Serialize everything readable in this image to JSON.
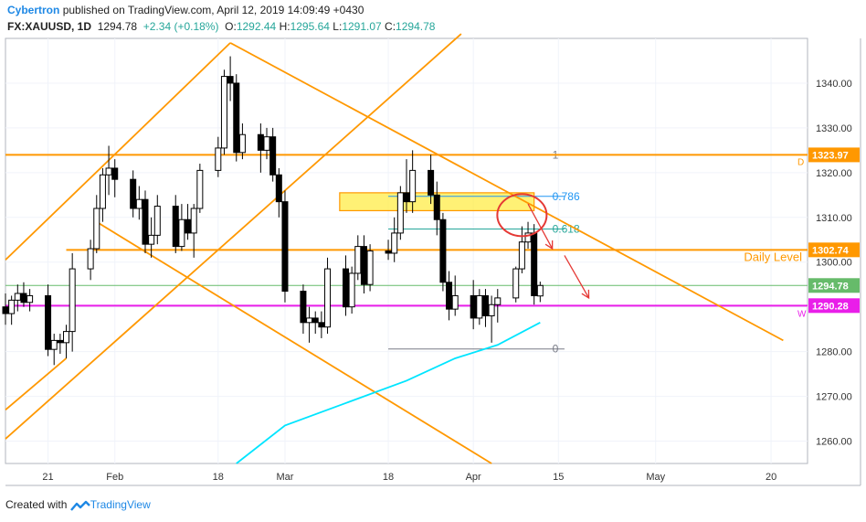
{
  "header": {
    "author": "Cybertron",
    "published_text": "published on TradingView.com, April 12, 2019 14:09:49 +0430",
    "symbol": "FX:XAUUSD, 1D",
    "last": "1294.78",
    "change": "+2.34 (+0.18%)",
    "o_label": "O:",
    "o_value": "1292.44",
    "h_label": "H:",
    "h_value": "1295.64",
    "l_label": "L:",
    "l_value": "1291.07",
    "c_label": "C:",
    "c_value": "1294.78"
  },
  "footer": {
    "created_with": "Created with",
    "brand": "TradingView"
  },
  "colors": {
    "bull": "#ffffff",
    "bear": "#000000",
    "orange": "#ff9800",
    "magenta": "#e91ee9",
    "ma": "#00e5ff",
    "fib_blue": "#2196f3",
    "fib_green": "#26a69a",
    "red": "#e53935",
    "zone": "#ffeb3b",
    "green_line": "#66bb6a",
    "gray": "#787b86"
  },
  "chart_data": {
    "type": "candlestick",
    "x_labels": [
      {
        "label": "21",
        "date": "2019-01-21"
      },
      {
        "label": "Feb",
        "date": "2019-02-01"
      },
      {
        "label": "18",
        "date": "2019-02-18"
      },
      {
        "label": "Mar",
        "date": "2019-03-01"
      },
      {
        "label": "18",
        "date": "2019-03-18"
      },
      {
        "label": "Apr",
        "date": "2019-04-01"
      },
      {
        "label": "15",
        "date": "2019-04-15"
      },
      {
        "label": "May",
        "date": "2019-05-01"
      },
      {
        "label": "20",
        "date": "2019-05-20"
      }
    ],
    "y_ticks": [
      1260,
      1270,
      1280,
      1290,
      1300,
      1310,
      1320,
      1330,
      1340
    ],
    "ylim": [
      1255,
      1350
    ],
    "xlim": [
      "2019-01-14",
      "2019-05-26"
    ],
    "candles": [
      {
        "date": "2019-01-14",
        "o": 1290.0,
        "h": 1293.0,
        "l": 1286.0,
        "c": 1288.5
      },
      {
        "date": "2019-01-15",
        "o": 1288.5,
        "h": 1292.5,
        "l": 1286.0,
        "c": 1291.5
      },
      {
        "date": "2019-01-16",
        "o": 1291.5,
        "h": 1295.0,
        "l": 1289.0,
        "c": 1293.0
      },
      {
        "date": "2019-01-17",
        "o": 1293.0,
        "h": 1295.5,
        "l": 1290.0,
        "c": 1291.0
      },
      {
        "date": "2019-01-18",
        "o": 1291.0,
        "h": 1294.0,
        "l": 1289.0,
        "c": 1292.5
      },
      {
        "date": "2019-01-21",
        "o": 1292.5,
        "h": 1295.0,
        "l": 1279.0,
        "c": 1280.5
      },
      {
        "date": "2019-01-22",
        "o": 1280.5,
        "h": 1284.0,
        "l": 1277.0,
        "c": 1282.5
      },
      {
        "date": "2019-01-23",
        "o": 1282.5,
        "h": 1284.0,
        "l": 1279.5,
        "c": 1282.0
      },
      {
        "date": "2019-01-24",
        "o": 1282.0,
        "h": 1286.0,
        "l": 1278.5,
        "c": 1284.5
      },
      {
        "date": "2019-01-25",
        "o": 1284.5,
        "h": 1302.0,
        "l": 1280.0,
        "c": 1298.5
      },
      {
        "date": "2019-01-28",
        "o": 1298.5,
        "h": 1305.0,
        "l": 1296.0,
        "c": 1303.0
      },
      {
        "date": "2019-01-29",
        "o": 1303.0,
        "h": 1315.0,
        "l": 1302.0,
        "c": 1312.0
      },
      {
        "date": "2019-01-30",
        "o": 1312.0,
        "h": 1321.0,
        "l": 1309.0,
        "c": 1319.5
      },
      {
        "date": "2019-01-31",
        "o": 1319.5,
        "h": 1326.0,
        "l": 1315.0,
        "c": 1321.0
      },
      {
        "date": "2019-02-01",
        "o": 1321.0,
        "h": 1323.0,
        "l": 1314.5,
        "c": 1318.5
      },
      {
        "date": "2019-02-04",
        "o": 1318.5,
        "h": 1320.5,
        "l": 1310.0,
        "c": 1312.0
      },
      {
        "date": "2019-02-05",
        "o": 1312.0,
        "h": 1317.0,
        "l": 1309.5,
        "c": 1314.0
      },
      {
        "date": "2019-02-06",
        "o": 1314.0,
        "h": 1316.0,
        "l": 1302.0,
        "c": 1304.0
      },
      {
        "date": "2019-02-07",
        "o": 1304.0,
        "h": 1310.0,
        "l": 1301.0,
        "c": 1306.0
      },
      {
        "date": "2019-02-08",
        "o": 1306.0,
        "h": 1315.0,
        "l": 1304.0,
        "c": 1312.5
      },
      {
        "date": "2019-02-11",
        "o": 1312.5,
        "h": 1315.0,
        "l": 1302.0,
        "c": 1303.5
      },
      {
        "date": "2019-02-12",
        "o": 1303.5,
        "h": 1313.0,
        "l": 1302.5,
        "c": 1309.5
      },
      {
        "date": "2019-02-13",
        "o": 1309.5,
        "h": 1313.0,
        "l": 1305.0,
        "c": 1306.5
      },
      {
        "date": "2019-02-14",
        "o": 1306.5,
        "h": 1313.0,
        "l": 1301.0,
        "c": 1312.0
      },
      {
        "date": "2019-02-15",
        "o": 1312.0,
        "h": 1322.0,
        "l": 1311.0,
        "c": 1320.5
      },
      {
        "date": "2019-02-18",
        "o": 1320.5,
        "h": 1328.0,
        "l": 1319.0,
        "c": 1325.5
      },
      {
        "date": "2019-02-19",
        "o": 1325.5,
        "h": 1343.0,
        "l": 1324.0,
        "c": 1341.5
      },
      {
        "date": "2019-02-20",
        "o": 1341.5,
        "h": 1346.0,
        "l": 1336.0,
        "c": 1340.0
      },
      {
        "date": "2019-02-21",
        "o": 1340.0,
        "h": 1342.0,
        "l": 1322.5,
        "c": 1324.5
      },
      {
        "date": "2019-02-22",
        "o": 1324.5,
        "h": 1331.0,
        "l": 1323.0,
        "c": 1328.5
      },
      {
        "date": "2019-02-25",
        "o": 1328.5,
        "h": 1331.0,
        "l": 1320.0,
        "c": 1325.0
      },
      {
        "date": "2019-02-26",
        "o": 1325.0,
        "h": 1330.0,
        "l": 1323.0,
        "c": 1328.0
      },
      {
        "date": "2019-02-27",
        "o": 1328.0,
        "h": 1330.0,
        "l": 1318.0,
        "c": 1319.5
      },
      {
        "date": "2019-02-28",
        "o": 1319.5,
        "h": 1321.0,
        "l": 1310.0,
        "c": 1313.5
      },
      {
        "date": "2019-03-01",
        "o": 1313.5,
        "h": 1316.0,
        "l": 1291.0,
        "c": 1293.5
      },
      {
        "date": "2019-03-04",
        "o": 1293.5,
        "h": 1295.0,
        "l": 1284.0,
        "c": 1286.5
      },
      {
        "date": "2019-03-05",
        "o": 1286.5,
        "h": 1290.0,
        "l": 1282.0,
        "c": 1287.5
      },
      {
        "date": "2019-03-06",
        "o": 1287.5,
        "h": 1289.0,
        "l": 1284.0,
        "c": 1286.5
      },
      {
        "date": "2019-03-07",
        "o": 1286.5,
        "h": 1289.0,
        "l": 1283.0,
        "c": 1285.5
      },
      {
        "date": "2019-03-08",
        "o": 1285.5,
        "h": 1301.0,
        "l": 1284.0,
        "c": 1298.5
      },
      {
        "date": "2019-03-11",
        "o": 1298.5,
        "h": 1301.5,
        "l": 1288.0,
        "c": 1290.0
      },
      {
        "date": "2019-03-12",
        "o": 1290.0,
        "h": 1299.0,
        "l": 1288.5,
        "c": 1297.5
      },
      {
        "date": "2019-03-13",
        "o": 1297.5,
        "h": 1306.0,
        "l": 1296.0,
        "c": 1303.5
      },
      {
        "date": "2019-03-14",
        "o": 1303.5,
        "h": 1306.0,
        "l": 1293.0,
        "c": 1295.0
      },
      {
        "date": "2019-03-15",
        "o": 1295.0,
        "h": 1304.0,
        "l": 1293.5,
        "c": 1302.5
      },
      {
        "date": "2019-03-18",
        "o": 1302.5,
        "h": 1305.0,
        "l": 1300.5,
        "c": 1302.0
      },
      {
        "date": "2019-03-19",
        "o": 1302.0,
        "h": 1310.0,
        "l": 1300.0,
        "c": 1306.5
      },
      {
        "date": "2019-03-20",
        "o": 1306.5,
        "h": 1317.0,
        "l": 1305.0,
        "c": 1315.5
      },
      {
        "date": "2019-03-21",
        "o": 1315.5,
        "h": 1323.0,
        "l": 1311.0,
        "c": 1313.5
      },
      {
        "date": "2019-03-22",
        "o": 1313.5,
        "h": 1325.0,
        "l": 1311.0,
        "c": 1320.5
      },
      {
        "date": "2019-03-25",
        "o": 1320.5,
        "h": 1324.0,
        "l": 1313.0,
        "c": 1315.0
      },
      {
        "date": "2019-03-26",
        "o": 1315.0,
        "h": 1318.0,
        "l": 1306.0,
        "c": 1309.5
      },
      {
        "date": "2019-03-27",
        "o": 1309.5,
        "h": 1311.0,
        "l": 1293.5,
        "c": 1295.5
      },
      {
        "date": "2019-03-28",
        "o": 1295.5,
        "h": 1298.0,
        "l": 1287.0,
        "c": 1289.5
      },
      {
        "date": "2019-03-29",
        "o": 1289.5,
        "h": 1297.0,
        "l": 1288.0,
        "c": 1292.5
      },
      {
        "date": "2019-04-01",
        "o": 1292.5,
        "h": 1296.0,
        "l": 1285.0,
        "c": 1287.5
      },
      {
        "date": "2019-04-02",
        "o": 1287.5,
        "h": 1294.0,
        "l": 1286.0,
        "c": 1292.5
      },
      {
        "date": "2019-04-03",
        "o": 1292.5,
        "h": 1294.0,
        "l": 1285.5,
        "c": 1288.0
      },
      {
        "date": "2019-04-04",
        "o": 1288.0,
        "h": 1292.5,
        "l": 1282.0,
        "c": 1290.5
      },
      {
        "date": "2019-04-05",
        "o": 1290.5,
        "h": 1294.0,
        "l": 1286.5,
        "c": 1292.0
      },
      {
        "date": "2019-04-08",
        "o": 1292.0,
        "h": 1299.0,
        "l": 1291.0,
        "c": 1298.5
      },
      {
        "date": "2019-04-09",
        "o": 1298.5,
        "h": 1308.0,
        "l": 1297.5,
        "c": 1304.5
      },
      {
        "date": "2019-04-10",
        "o": 1304.5,
        "h": 1309.0,
        "l": 1303.0,
        "c": 1306.5
      },
      {
        "date": "2019-04-11",
        "o": 1306.5,
        "h": 1308.5,
        "l": 1290.5,
        "c": 1292.5
      },
      {
        "date": "2019-04-12",
        "o": 1292.44,
        "h": 1295.64,
        "l": 1291.07,
        "c": 1294.78
      }
    ],
    "moving_average": [
      {
        "date": "2019-02-21",
        "v": 1255.0
      },
      {
        "date": "2019-03-01",
        "v": 1263.5
      },
      {
        "date": "2019-03-11",
        "v": 1268.5
      },
      {
        "date": "2019-03-21",
        "v": 1273.5
      },
      {
        "date": "2019-03-29",
        "v": 1278.5
      },
      {
        "date": "2019-04-05",
        "v": 1281.5
      },
      {
        "date": "2019-04-12",
        "v": 1286.5
      }
    ],
    "horizontal_levels": [
      {
        "name": "1323.97 resistance",
        "price": 1323.97,
        "color": "#ff9800",
        "label": "1323.97",
        "axis_letter": "D"
      },
      {
        "name": "daily level",
        "price": 1302.74,
        "color": "#ff9800",
        "label": "1302.74",
        "text": "Daily Level",
        "from": "2019-01-24"
      },
      {
        "name": "current price",
        "price": 1294.78,
        "color": "#66bb6a",
        "label": "1294.78"
      },
      {
        "name": "weekly level",
        "price": 1290.28,
        "color": "#e91ee9",
        "label": "1290.28",
        "axis_letter": "W"
      }
    ],
    "fibonacci": {
      "from": "2019-03-18",
      "to": "2019-04-16",
      "label_at": "2019-04-14",
      "levels": [
        {
          "ratio": "1",
          "price": 1323.97,
          "color": "#787b86"
        },
        {
          "ratio": "0.786",
          "price": 1314.7,
          "color": "#2196f3"
        },
        {
          "ratio": "0.618",
          "price": 1307.4,
          "color": "#26a69a"
        },
        {
          "ratio": "0",
          "price": 1280.6,
          "color": "#787b86"
        }
      ]
    },
    "trendlines": [
      {
        "name": "ascending channel upper",
        "from": {
          "date": "2019-01-14",
          "price": 1300.5
        },
        "to": {
          "date": "2019-02-20",
          "price": 1349.0
        },
        "color": "#ff9800"
      },
      {
        "name": "ascending channel lower",
        "from": {
          "date": "2019-01-14",
          "price": 1260.5
        },
        "to": {
          "date": "2019-03-30",
          "price": 1351.0
        },
        "color": "#ff9800"
      },
      {
        "name": "inner channel line",
        "from": {
          "date": "2019-01-14",
          "price": 1267.0
        },
        "to": {
          "date": "2019-01-24",
          "price": 1278.5
        },
        "color": "#ff9800"
      },
      {
        "name": "descending resistance",
        "from": {
          "date": "2019-02-20",
          "price": 1349.0
        },
        "to": {
          "date": "2019-05-22",
          "price": 1282.5
        },
        "color": "#ff9800"
      },
      {
        "name": "descending support",
        "from": {
          "date": "2019-01-29",
          "price": 1309.0
        },
        "to": {
          "date": "2019-04-04",
          "price": 1255.0
        },
        "color": "#ff9800"
      }
    ],
    "zone": {
      "from": "2019-03-10",
      "to": "2019-04-11",
      "top": 1315.5,
      "bottom": 1311.5,
      "color": "#ffeb3b"
    },
    "ellipse": {
      "center_date": "2019-04-09",
      "center_price": 1310.5,
      "color": "#e53935"
    },
    "arrows": [
      {
        "from": {
          "date": "2019-04-10",
          "price": 1313.0
        },
        "to": {
          "date": "2019-04-14",
          "price": 1303.0
        }
      },
      {
        "from": {
          "date": "2019-04-16",
          "price": 1301.5
        },
        "to": {
          "date": "2019-04-20",
          "price": 1292.0
        }
      }
    ],
    "grid": true
  }
}
